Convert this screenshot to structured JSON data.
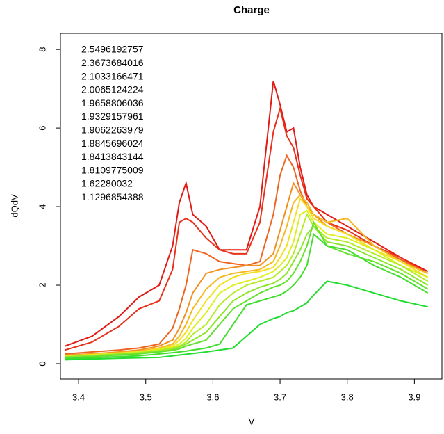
{
  "chart_data": {
    "type": "line",
    "title": "Charge",
    "xlabel": "V",
    "ylabel": "dQdV",
    "x": [
      3.38,
      3.42,
      3.46,
      3.49,
      3.52,
      3.54,
      3.55,
      3.56,
      3.57,
      3.59,
      3.61,
      3.63,
      3.65,
      3.67,
      3.69,
      3.7,
      3.71,
      3.72,
      3.73,
      3.74,
      3.75,
      3.77,
      3.8,
      3.84,
      3.88,
      3.92
    ],
    "series": [
      {
        "name": "2.5496192757",
        "color": "#e31a14",
        "values": [
          0.45,
          0.7,
          1.2,
          1.7,
          2.0,
          3.0,
          4.1,
          4.6,
          3.8,
          3.5,
          2.9,
          2.9,
          2.9,
          4.0,
          7.2,
          6.6,
          5.9,
          6.0,
          5.0,
          4.3,
          4.0,
          3.8,
          3.5,
          3.1,
          2.7,
          2.35
        ]
      },
      {
        "name": "2.3673684016",
        "color": "#e8301a",
        "values": [
          0.35,
          0.55,
          0.95,
          1.4,
          1.6,
          2.4,
          3.6,
          3.7,
          3.6,
          3.2,
          2.9,
          2.8,
          2.8,
          3.6,
          5.9,
          6.5,
          5.8,
          5.5,
          4.8,
          4.2,
          4.0,
          3.6,
          3.4,
          3.0,
          2.7,
          2.3
        ]
      },
      {
        "name": "2.1033166471",
        "color": "#ee6420",
        "values": [
          0.25,
          0.3,
          0.35,
          0.4,
          0.5,
          0.9,
          1.4,
          2.0,
          2.9,
          2.8,
          2.6,
          2.55,
          2.5,
          2.6,
          3.8,
          4.8,
          5.3,
          5.0,
          4.4,
          4.0,
          3.8,
          3.6,
          3.3,
          3.0,
          2.65,
          2.3
        ]
      },
      {
        "name": "2.0065124224",
        "color": "#f29020",
        "values": [
          0.22,
          0.25,
          0.3,
          0.35,
          0.45,
          0.6,
          0.9,
          1.3,
          1.8,
          2.3,
          2.4,
          2.45,
          2.5,
          2.5,
          2.8,
          3.4,
          4.0,
          4.6,
          4.3,
          4.0,
          3.8,
          3.5,
          3.3,
          3.0,
          2.6,
          2.3
        ]
      },
      {
        "name": "1.9658806036",
        "color": "#f6b820",
        "values": [
          0.2,
          0.24,
          0.28,
          0.32,
          0.4,
          0.5,
          0.7,
          1.0,
          1.4,
          1.9,
          2.2,
          2.3,
          2.35,
          2.4,
          2.6,
          3.0,
          3.5,
          4.1,
          4.3,
          4.1,
          3.8,
          3.6,
          3.7,
          3.0,
          2.6,
          2.3
        ]
      },
      {
        "name": "1.9329157961",
        "color": "#f2e01e",
        "values": [
          0.2,
          0.23,
          0.27,
          0.3,
          0.38,
          0.45,
          0.6,
          0.8,
          1.1,
          1.6,
          2.0,
          2.2,
          2.3,
          2.35,
          2.45,
          2.7,
          3.0,
          3.6,
          4.2,
          4.0,
          3.7,
          3.5,
          3.3,
          2.9,
          2.6,
          2.2
        ]
      },
      {
        "name": "1.9062263979",
        "color": "#dcf020",
        "values": [
          0.19,
          0.22,
          0.26,
          0.3,
          0.36,
          0.42,
          0.5,
          0.65,
          0.9,
          1.3,
          1.8,
          2.0,
          2.1,
          2.2,
          2.35,
          2.5,
          2.7,
          3.1,
          3.8,
          3.9,
          3.6,
          3.3,
          3.2,
          2.9,
          2.5,
          2.2
        ]
      },
      {
        "name": "1.8845696024",
        "color": "#b4ec26",
        "values": [
          0.18,
          0.21,
          0.25,
          0.28,
          0.34,
          0.4,
          0.45,
          0.55,
          0.75,
          1.0,
          1.5,
          1.8,
          2.0,
          2.1,
          2.2,
          2.35,
          2.5,
          2.8,
          3.3,
          3.8,
          3.5,
          3.2,
          3.1,
          2.8,
          2.5,
          2.1
        ]
      },
      {
        "name": "1.8413843144",
        "color": "#8ce62a",
        "values": [
          0.17,
          0.2,
          0.24,
          0.27,
          0.32,
          0.37,
          0.42,
          0.5,
          0.6,
          0.8,
          1.2,
          1.6,
          1.8,
          1.95,
          2.05,
          2.15,
          2.3,
          2.6,
          2.9,
          3.3,
          3.5,
          3.1,
          3.0,
          2.7,
          2.4,
          2.0
        ]
      },
      {
        "name": "1.8109775009",
        "color": "#64e22c",
        "values": [
          0.15,
          0.18,
          0.22,
          0.25,
          0.3,
          0.34,
          0.38,
          0.45,
          0.5,
          0.6,
          1.0,
          1.4,
          1.6,
          1.8,
          1.95,
          2.0,
          2.1,
          2.3,
          2.6,
          3.0,
          3.6,
          3.0,
          2.8,
          2.6,
          2.3,
          1.9
        ]
      },
      {
        "name": "1.62280032",
        "color": "#42de2e",
        "values": [
          0.13,
          0.15,
          0.18,
          0.2,
          0.25,
          0.28,
          0.3,
          0.32,
          0.35,
          0.4,
          0.5,
          1.0,
          1.5,
          1.6,
          1.7,
          1.75,
          1.85,
          2.0,
          2.2,
          2.5,
          3.3,
          3.0,
          2.9,
          2.5,
          2.2,
          1.8
        ]
      },
      {
        "name": "1.1296854388",
        "color": "#22dc30",
        "values": [
          0.1,
          0.12,
          0.14,
          0.15,
          0.16,
          0.2,
          0.22,
          0.24,
          0.26,
          0.3,
          0.35,
          0.4,
          0.7,
          1.0,
          1.15,
          1.2,
          1.3,
          1.35,
          1.45,
          1.55,
          1.75,
          2.1,
          2.0,
          1.8,
          1.6,
          1.45
        ]
      }
    ],
    "xlim": [
      3.373,
      3.941
    ],
    "xticks": [
      3.4,
      3.5,
      3.6,
      3.7,
      3.8,
      3.9
    ],
    "ylim": [
      -0.39,
      8.41
    ],
    "yticks": [
      0,
      2,
      4,
      6,
      8
    ]
  }
}
